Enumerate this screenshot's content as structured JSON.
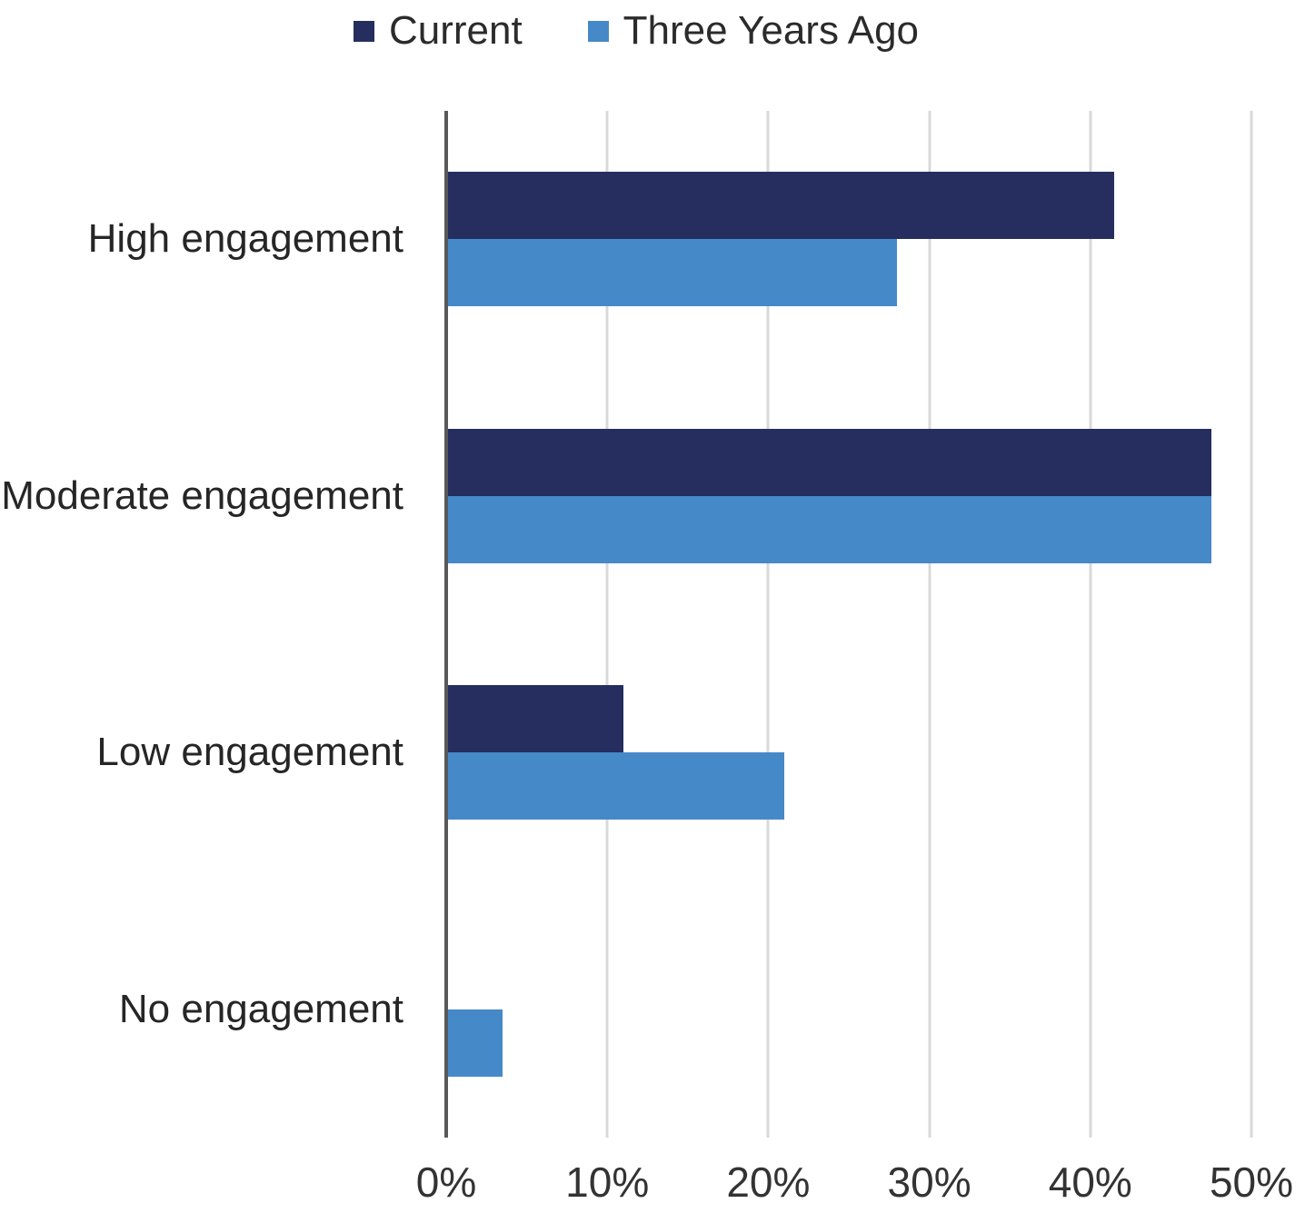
{
  "chart_data": {
    "type": "bar",
    "orientation": "horizontal",
    "title": "",
    "xlabel": "",
    "ylabel": "",
    "categories": [
      "High engagement",
      "Moderate engagement",
      "Low engagement",
      "No engagement"
    ],
    "series": [
      {
        "name": "Current",
        "color": "#252e5f",
        "values": [
          41.5,
          47.5,
          11,
          0
        ]
      },
      {
        "name": "Three Years Ago",
        "color": "#4689c8",
        "values": [
          28,
          47.5,
          21,
          3.5
        ]
      }
    ],
    "xlim": [
      0,
      50
    ],
    "x_ticks": [
      {
        "value": 0,
        "label": "0%"
      },
      {
        "value": 10,
        "label": "10%"
      },
      {
        "value": 20,
        "label": "20%"
      },
      {
        "value": 30,
        "label": "30%"
      },
      {
        "value": 40,
        "label": "40%"
      },
      {
        "value": 50,
        "label": "50%"
      }
    ],
    "grid": true,
    "legend_position": "top",
    "colors": {
      "gridline": "#d9d9d9",
      "axis_line": "#595959",
      "tick_text": "#333333",
      "category_text": "#262626",
      "legend_text": "#2b2b2b",
      "background": "#ffffff"
    }
  }
}
